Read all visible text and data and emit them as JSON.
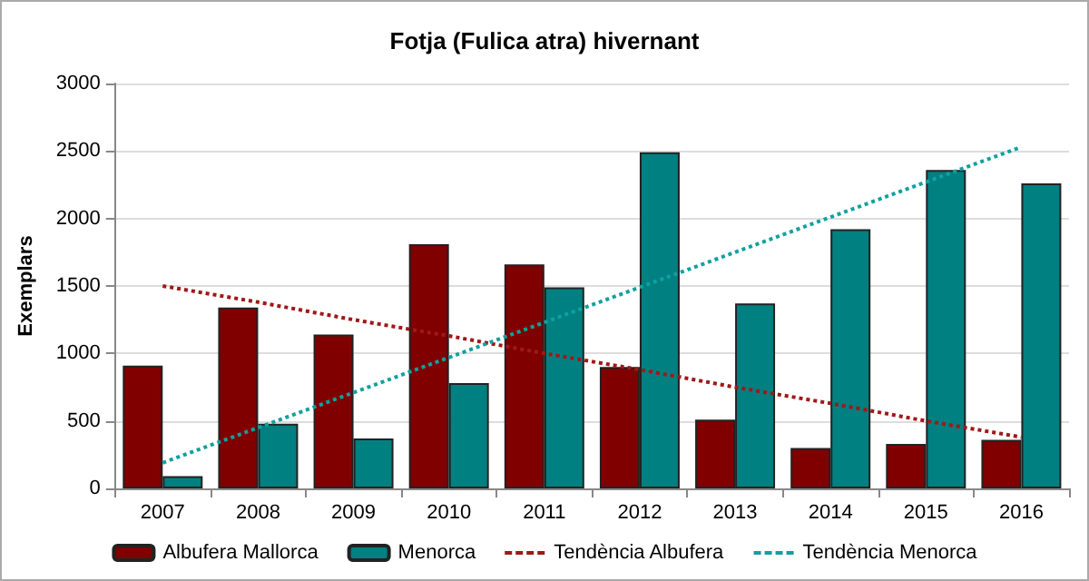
{
  "chart_data": {
    "type": "bar",
    "title": "Fotja (Fulica atra) hivernant",
    "ylabel": "Exemplars",
    "categories": [
      "2007",
      "2008",
      "2009",
      "2010",
      "2011",
      "2012",
      "2013",
      "2014",
      "2015",
      "2016"
    ],
    "series": [
      {
        "name": "Albufera Mallorca",
        "color": "#800000",
        "values": [
          910,
          1340,
          1140,
          1810,
          1660,
          900,
          510,
          300,
          330,
          360
        ]
      },
      {
        "name": "Menorca",
        "color": "#008080",
        "values": [
          90,
          480,
          370,
          780,
          1490,
          2490,
          1370,
          1920,
          2360,
          2260
        ]
      },
      {
        "name": "Tendència Albufera",
        "type": "line",
        "color": "#a01818",
        "line_style": "dotted",
        "marker": "none",
        "values": [
          1500,
          1380,
          1250,
          1130,
          1000,
          880,
          750,
          630,
          500,
          380
        ]
      },
      {
        "name": "Tendència Menorca",
        "type": "line",
        "color": "#10a0a0",
        "line_style": "dotted",
        "marker": "none",
        "values": [
          190,
          450,
          710,
          970,
          1230,
          1490,
          1750,
          2010,
          2270,
          2530
        ]
      }
    ],
    "ylim": [
      0,
      3000
    ],
    "yticks": [
      0,
      500,
      1000,
      1500,
      2000,
      2500,
      3000
    ],
    "grid": "y",
    "legend": "bottom"
  }
}
